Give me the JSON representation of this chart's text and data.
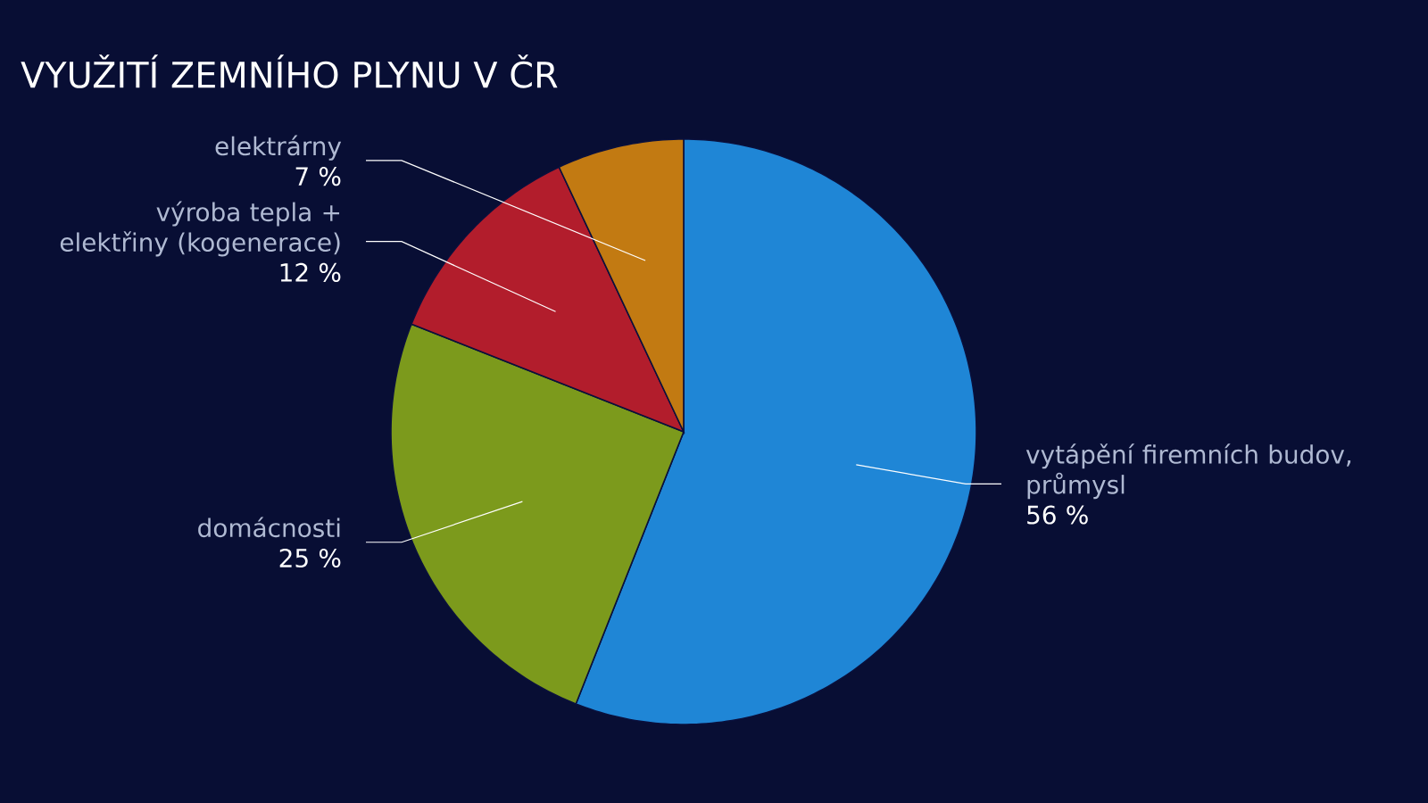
{
  "chart_data": {
    "type": "pie",
    "title": "VYUŽITÍ ZEMNÍHO PLYNU V ČR",
    "categories": [
      "vytápění firemních budov, průmysl",
      "domácnosti",
      "výroba  tepla + elektřiny (kogenerace)",
      "elektrárny"
    ],
    "values": [
      56,
      25,
      12,
      7
    ],
    "value_labels": [
      "56 %",
      "25 %",
      "12 %",
      "7 %"
    ],
    "colors": [
      "#1f86d6",
      "#7c9a1c",
      "#b21d2c",
      "#c27a12"
    ]
  }
}
